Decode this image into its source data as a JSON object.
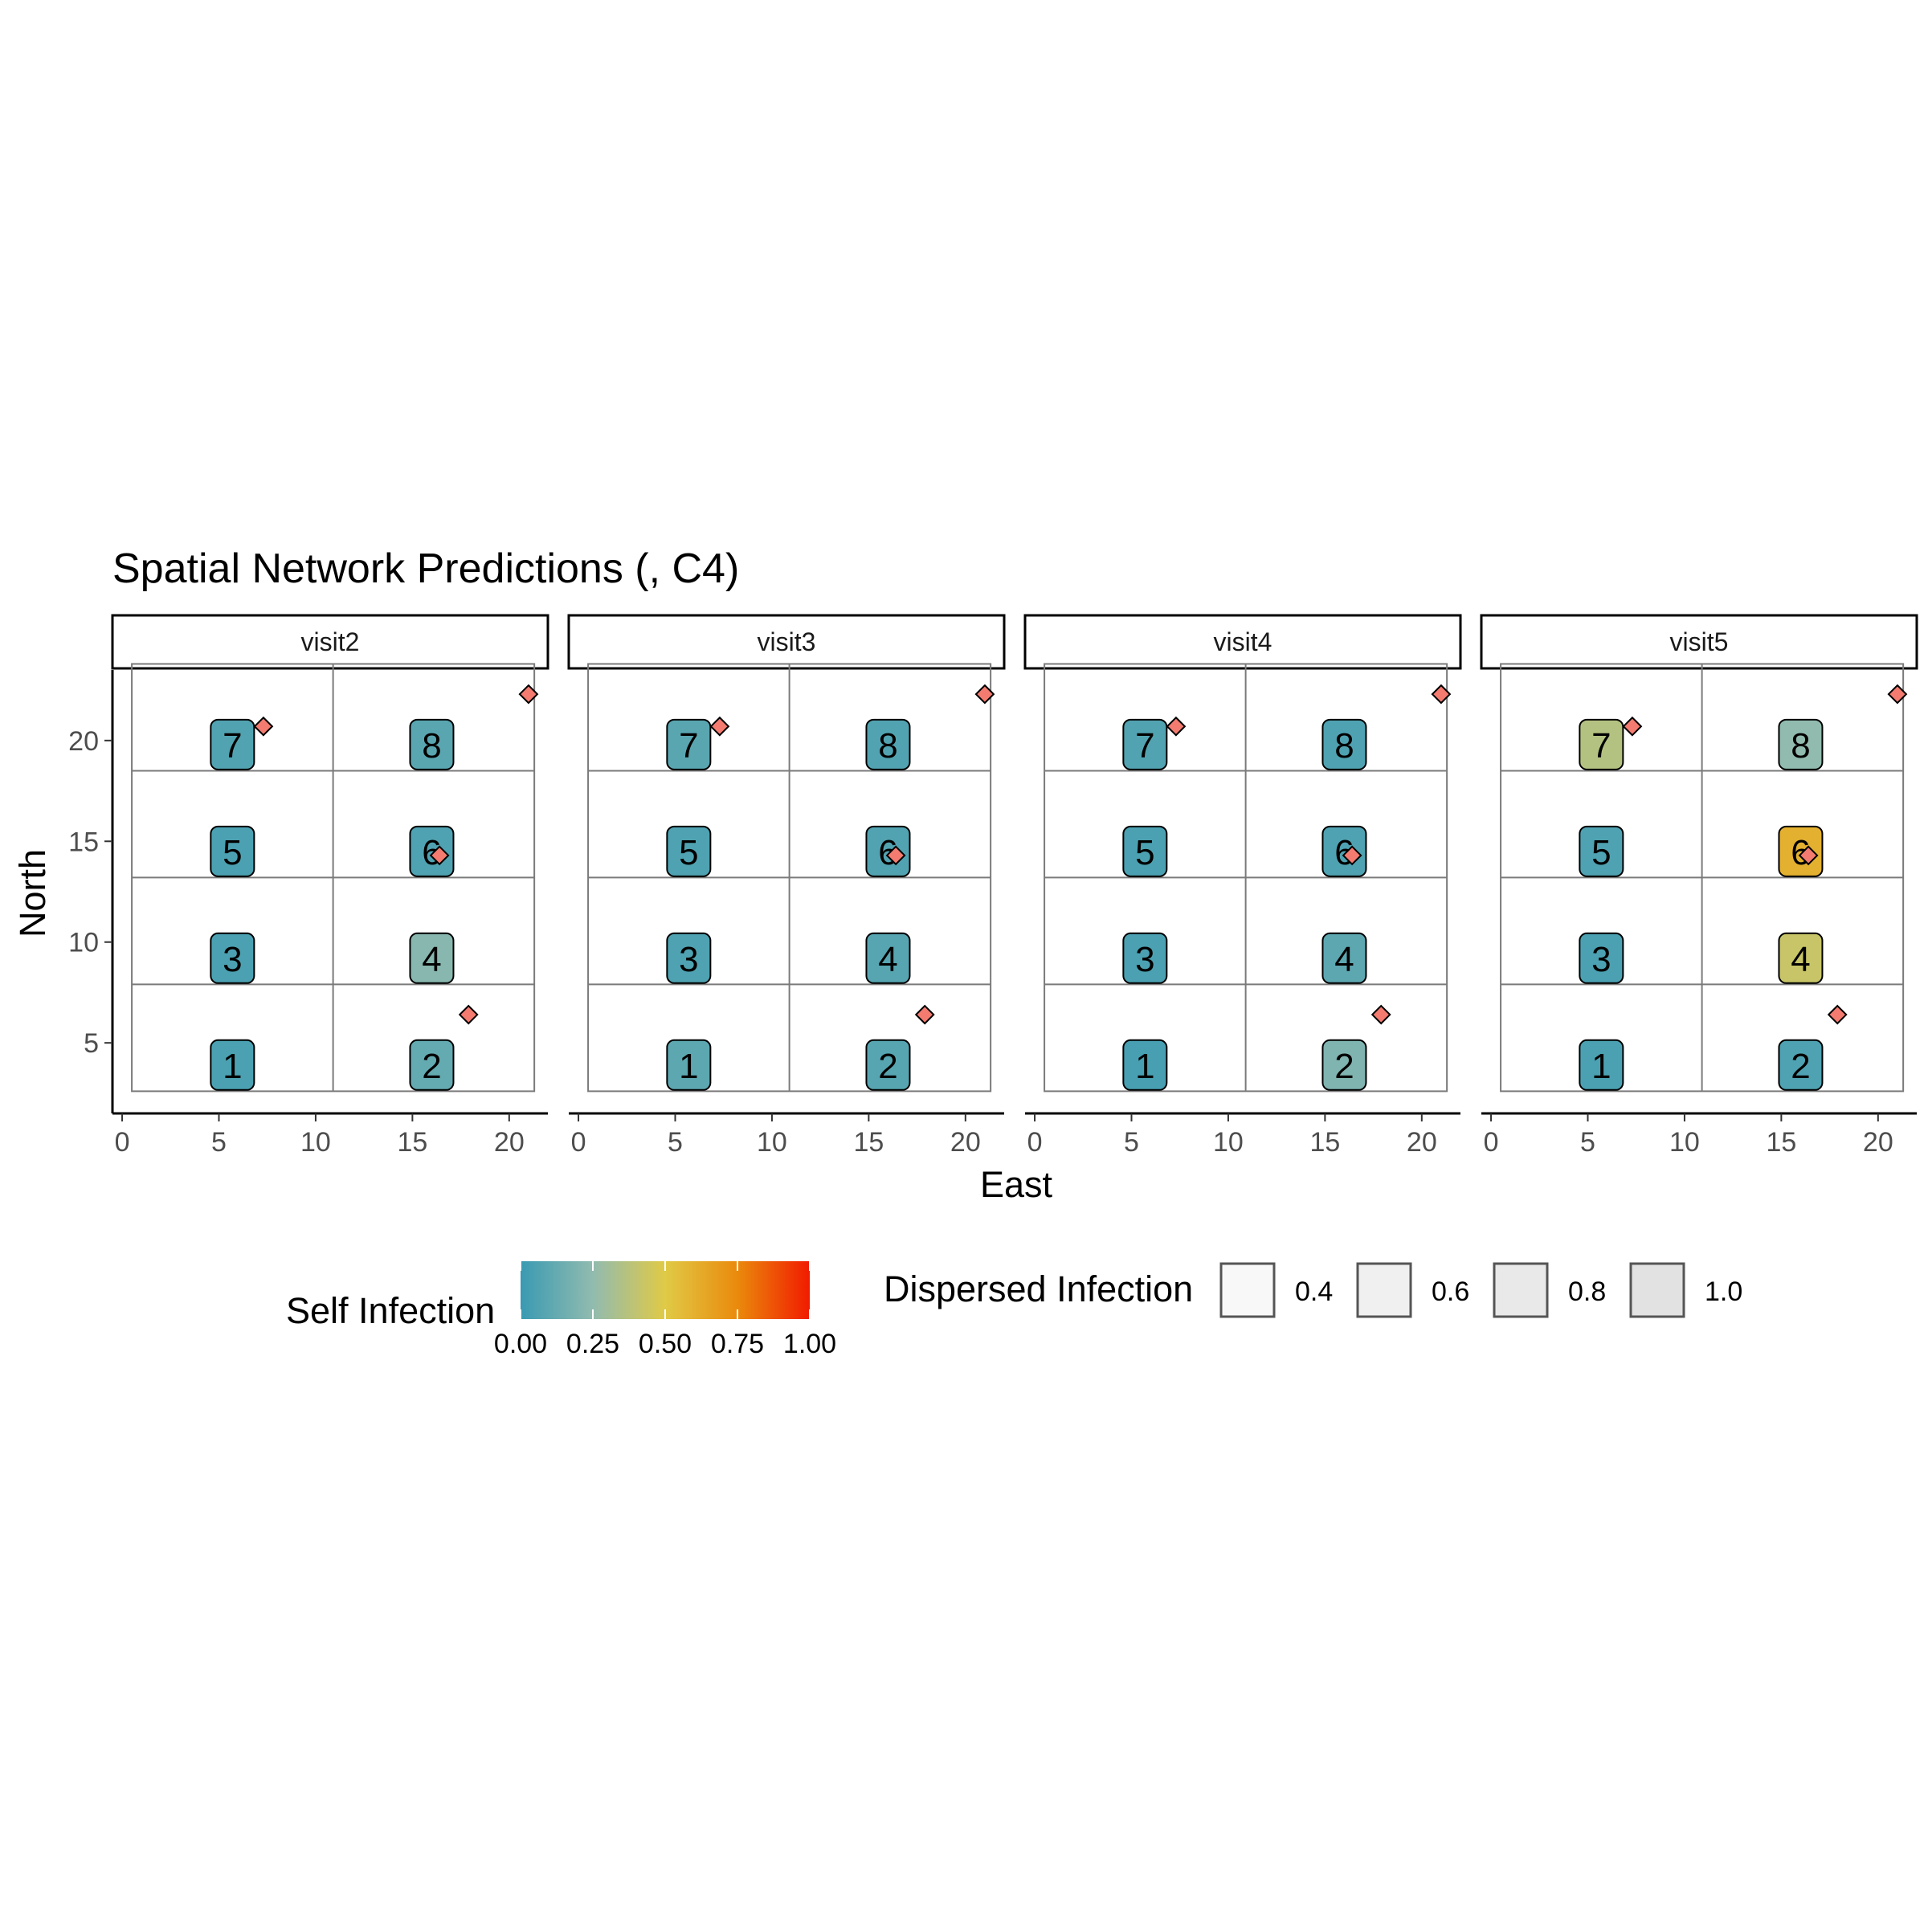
{
  "chart_data": {
    "type": "heatmap",
    "title": "Spatial Network Predictions (, C4)",
    "xlabel": "East",
    "ylabel": "North",
    "xlim": [
      -0.5,
      22
    ],
    "ylim": [
      1.5,
      23.5
    ],
    "x_ticks": [
      0,
      5,
      10,
      15,
      20
    ],
    "x_tick_labels": [
      "0",
      "5",
      "10",
      "15",
      "20"
    ],
    "y_ticks": [
      5,
      10,
      15,
      20
    ],
    "y_tick_labels": [
      "5",
      "10",
      "15",
      "20"
    ],
    "grid": false,
    "field_grid": {
      "x_breaks": [
        0.5,
        10.9,
        21.3
      ],
      "y_breaks": [
        2.6,
        7.9,
        13.2,
        18.5,
        23.8
      ]
    },
    "facets": [
      {
        "label": "visit2",
        "plots": [
          {
            "id": "1",
            "x": 5.7,
            "y": 3.9,
            "self_infection": 0.05
          },
          {
            "id": "2",
            "x": 16.0,
            "y": 3.9,
            "self_infection": 0.12
          },
          {
            "id": "3",
            "x": 5.7,
            "y": 9.2,
            "self_infection": 0.05
          },
          {
            "id": "4",
            "x": 16.0,
            "y": 9.2,
            "self_infection": 0.22
          },
          {
            "id": "5",
            "x": 5.7,
            "y": 14.5,
            "self_infection": 0.05
          },
          {
            "id": "6",
            "x": 16.0,
            "y": 14.5,
            "self_infection": 0.06
          },
          {
            "id": "7",
            "x": 5.7,
            "y": 19.8,
            "self_infection": 0.07
          },
          {
            "id": "8",
            "x": 16.0,
            "y": 19.8,
            "self_infection": 0.09
          }
        ]
      },
      {
        "label": "visit3",
        "plots": [
          {
            "id": "1",
            "x": 5.7,
            "y": 3.9,
            "self_infection": 0.1
          },
          {
            "id": "2",
            "x": 16.0,
            "y": 3.9,
            "self_infection": 0.08
          },
          {
            "id": "3",
            "x": 5.7,
            "y": 9.2,
            "self_infection": 0.06
          },
          {
            "id": "4",
            "x": 16.0,
            "y": 9.2,
            "self_infection": 0.08
          },
          {
            "id": "5",
            "x": 5.7,
            "y": 14.5,
            "self_infection": 0.06
          },
          {
            "id": "6",
            "x": 16.0,
            "y": 14.5,
            "self_infection": 0.07
          },
          {
            "id": "7",
            "x": 5.7,
            "y": 19.8,
            "self_infection": 0.09
          },
          {
            "id": "8",
            "x": 16.0,
            "y": 19.8,
            "self_infection": 0.07
          }
        ]
      },
      {
        "label": "visit4",
        "plots": [
          {
            "id": "1",
            "x": 5.7,
            "y": 3.9,
            "self_infection": 0.04
          },
          {
            "id": "2",
            "x": 16.0,
            "y": 3.9,
            "self_infection": 0.2
          },
          {
            "id": "3",
            "x": 5.7,
            "y": 9.2,
            "self_infection": 0.05
          },
          {
            "id": "4",
            "x": 16.0,
            "y": 9.2,
            "self_infection": 0.1
          },
          {
            "id": "5",
            "x": 5.7,
            "y": 14.5,
            "self_infection": 0.05
          },
          {
            "id": "6",
            "x": 16.0,
            "y": 14.5,
            "self_infection": 0.06
          },
          {
            "id": "7",
            "x": 5.7,
            "y": 19.8,
            "self_infection": 0.07
          },
          {
            "id": "8",
            "x": 16.0,
            "y": 19.8,
            "self_infection": 0.06
          }
        ]
      },
      {
        "label": "visit5",
        "plots": [
          {
            "id": "1",
            "x": 5.7,
            "y": 3.9,
            "self_infection": 0.05
          },
          {
            "id": "2",
            "x": 16.0,
            "y": 3.9,
            "self_infection": 0.06
          },
          {
            "id": "3",
            "x": 5.7,
            "y": 9.2,
            "self_infection": 0.05
          },
          {
            "id": "4",
            "x": 16.0,
            "y": 9.2,
            "self_infection": 0.42
          },
          {
            "id": "5",
            "x": 5.7,
            "y": 14.5,
            "self_infection": 0.06
          },
          {
            "id": "6",
            "x": 16.0,
            "y": 14.5,
            "self_infection": 0.6
          },
          {
            "id": "7",
            "x": 5.7,
            "y": 19.8,
            "self_infection": 0.36
          },
          {
            "id": "8",
            "x": 16.0,
            "y": 19.8,
            "self_infection": 0.25
          }
        ]
      }
    ],
    "sources": [
      {
        "x": 7.3,
        "y": 20.7
      },
      {
        "x": 21.0,
        "y": 22.3
      },
      {
        "x": 16.4,
        "y": 14.3
      },
      {
        "x": 17.9,
        "y": 6.4
      }
    ],
    "source_color": "#f37b70",
    "legend_position": "bottom",
    "color_legend": {
      "title": "Self Infection",
      "ticks": [
        "0.00",
        "0.25",
        "0.50",
        "0.75",
        "1.00"
      ],
      "tick_values": [
        0,
        0.25,
        0.5,
        0.75,
        1.0
      ],
      "gradient_stops": [
        {
          "value": 0.0,
          "color": "#3a9ab2"
        },
        {
          "value": 0.25,
          "color": "#91bbaf"
        },
        {
          "value": 0.5,
          "color": "#e0ca46"
        },
        {
          "value": 0.75,
          "color": "#ea8a0c"
        },
        {
          "value": 1.0,
          "color": "#f11b00"
        }
      ]
    },
    "fill_legend": {
      "title": "Dispersed Infection",
      "items": [
        {
          "label": "0.4",
          "value": 0.4,
          "color": "#f8f8f8"
        },
        {
          "label": "0.6",
          "value": 0.6,
          "color": "#f0f0f0"
        },
        {
          "label": "0.8",
          "value": 0.8,
          "color": "#e9e9e9"
        },
        {
          "label": "1.0",
          "value": 1.0,
          "color": "#e2e2e2"
        }
      ]
    }
  }
}
